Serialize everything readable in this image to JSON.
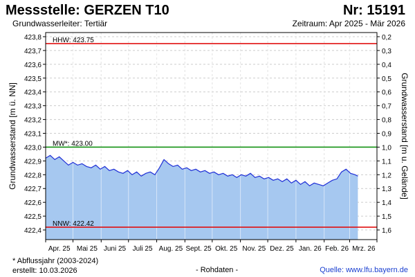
{
  "header": {
    "title": "Messstelle: GERZEN  T10",
    "number": "Nr: 15191",
    "aquifer": "Grundwasserleiter: Tertiär",
    "period": "Zeitraum: Apr 2025 - Mär 2026"
  },
  "footer": {
    "note": "* Abflussjahr (2003-2024)",
    "created": "erstellt:  10.03.2026",
    "raw": "- Rohdaten -",
    "source_label": "Quelle:",
    "source_value": "www.lfu.bayern.de"
  },
  "colors": {
    "area_fill": "#a6c8f0",
    "line": "#1f2fd6",
    "hhw": "#e01010",
    "nnw": "#e01010",
    "mw": "#119011",
    "grid": "#cccccc"
  },
  "chart_data": {
    "type": "area",
    "ylabel_left": "Grundwasserstand [m ü. NN]",
    "ylabel_right": "Grundwasserstand [m u. Gelände]",
    "ylim": [
      422.33,
      423.83
    ],
    "y_ticks_left": [
      "422,4",
      "422,5",
      "422,6",
      "422,7",
      "422,8",
      "422,9",
      "423,0",
      "423,1",
      "423,2",
      "423,3",
      "423,4",
      "423,5",
      "423,6",
      "423,7",
      "423,8"
    ],
    "y_ticks_right": [
      "1,6",
      "1,5",
      "1,4",
      "1,3",
      "1,2",
      "1,1",
      "1,0",
      "0,9",
      "0,8",
      "0,7",
      "0,6",
      "0,5",
      "0,4",
      "0,3",
      "0,2"
    ],
    "right_axis_reference_level": 424.0,
    "x_tick_labels": [
      "Apr. 25",
      "Mai 25",
      "Juni 25",
      "Juli 25",
      "Aug. 25",
      "Sept. 25",
      "Okt. 25",
      "Nov. 25",
      "Dez. 25",
      "Jan. 26",
      "Feb. 26",
      "Mrz. 26"
    ],
    "x_range": [
      "2025-04-01",
      "2026-03-31"
    ],
    "grid": true,
    "reference_lines": [
      {
        "label": "HHW: 423.75",
        "value": 423.75,
        "color": "#e01010"
      },
      {
        "label": "MW*: 423.00",
        "value": 423.0,
        "color": "#119011"
      },
      {
        "label": "NNW: 422.42",
        "value": 422.42,
        "color": "#e01010"
      }
    ],
    "series": [
      {
        "x": [
          "2025-04-01",
          "2025-04-06",
          "2025-04-11",
          "2025-04-16",
          "2025-04-21",
          "2025-04-26",
          "2025-05-01",
          "2025-05-06",
          "2025-05-11",
          "2025-05-16",
          "2025-05-21",
          "2025-05-26",
          "2025-05-31",
          "2025-06-05",
          "2025-06-10",
          "2025-06-15",
          "2025-06-20",
          "2025-06-25",
          "2025-06-30",
          "2025-07-05",
          "2025-07-10",
          "2025-07-15",
          "2025-07-20",
          "2025-07-25",
          "2025-07-30",
          "2025-08-04",
          "2025-08-09",
          "2025-08-14",
          "2025-08-19",
          "2025-08-24",
          "2025-08-29",
          "2025-09-03",
          "2025-09-08",
          "2025-09-13",
          "2025-09-18",
          "2025-09-23",
          "2025-09-28",
          "2025-10-03",
          "2025-10-08",
          "2025-10-13",
          "2025-10-18",
          "2025-10-23",
          "2025-10-28",
          "2025-11-02",
          "2025-11-07",
          "2025-11-12",
          "2025-11-17",
          "2025-11-22",
          "2025-11-27",
          "2025-12-02",
          "2025-12-07",
          "2025-12-12",
          "2025-12-17",
          "2025-12-22",
          "2025-12-27",
          "2026-01-01",
          "2026-01-06",
          "2026-01-11",
          "2026-01-16",
          "2026-01-21",
          "2026-01-26",
          "2026-01-31",
          "2026-02-05",
          "2026-02-10",
          "2026-02-15",
          "2026-02-20",
          "2026-02-25",
          "2026-03-02",
          "2026-03-07",
          "2026-03-10"
        ],
        "values": [
          422.92,
          422.94,
          422.91,
          422.93,
          422.9,
          422.87,
          422.89,
          422.87,
          422.88,
          422.86,
          422.85,
          422.87,
          422.84,
          422.86,
          422.83,
          422.84,
          422.82,
          422.81,
          422.83,
          422.8,
          422.82,
          422.79,
          422.81,
          422.82,
          422.8,
          422.85,
          422.91,
          422.88,
          422.86,
          422.87,
          422.84,
          422.85,
          422.83,
          422.84,
          422.82,
          422.83,
          422.81,
          422.82,
          422.8,
          422.81,
          422.79,
          422.8,
          422.78,
          422.8,
          422.79,
          422.81,
          422.78,
          422.79,
          422.77,
          422.78,
          422.76,
          422.77,
          422.75,
          422.77,
          422.74,
          422.76,
          422.73,
          422.75,
          422.72,
          422.74,
          422.73,
          422.72,
          422.74,
          422.76,
          422.77,
          422.82,
          422.84,
          422.81,
          422.8,
          422.79
        ]
      }
    ]
  }
}
